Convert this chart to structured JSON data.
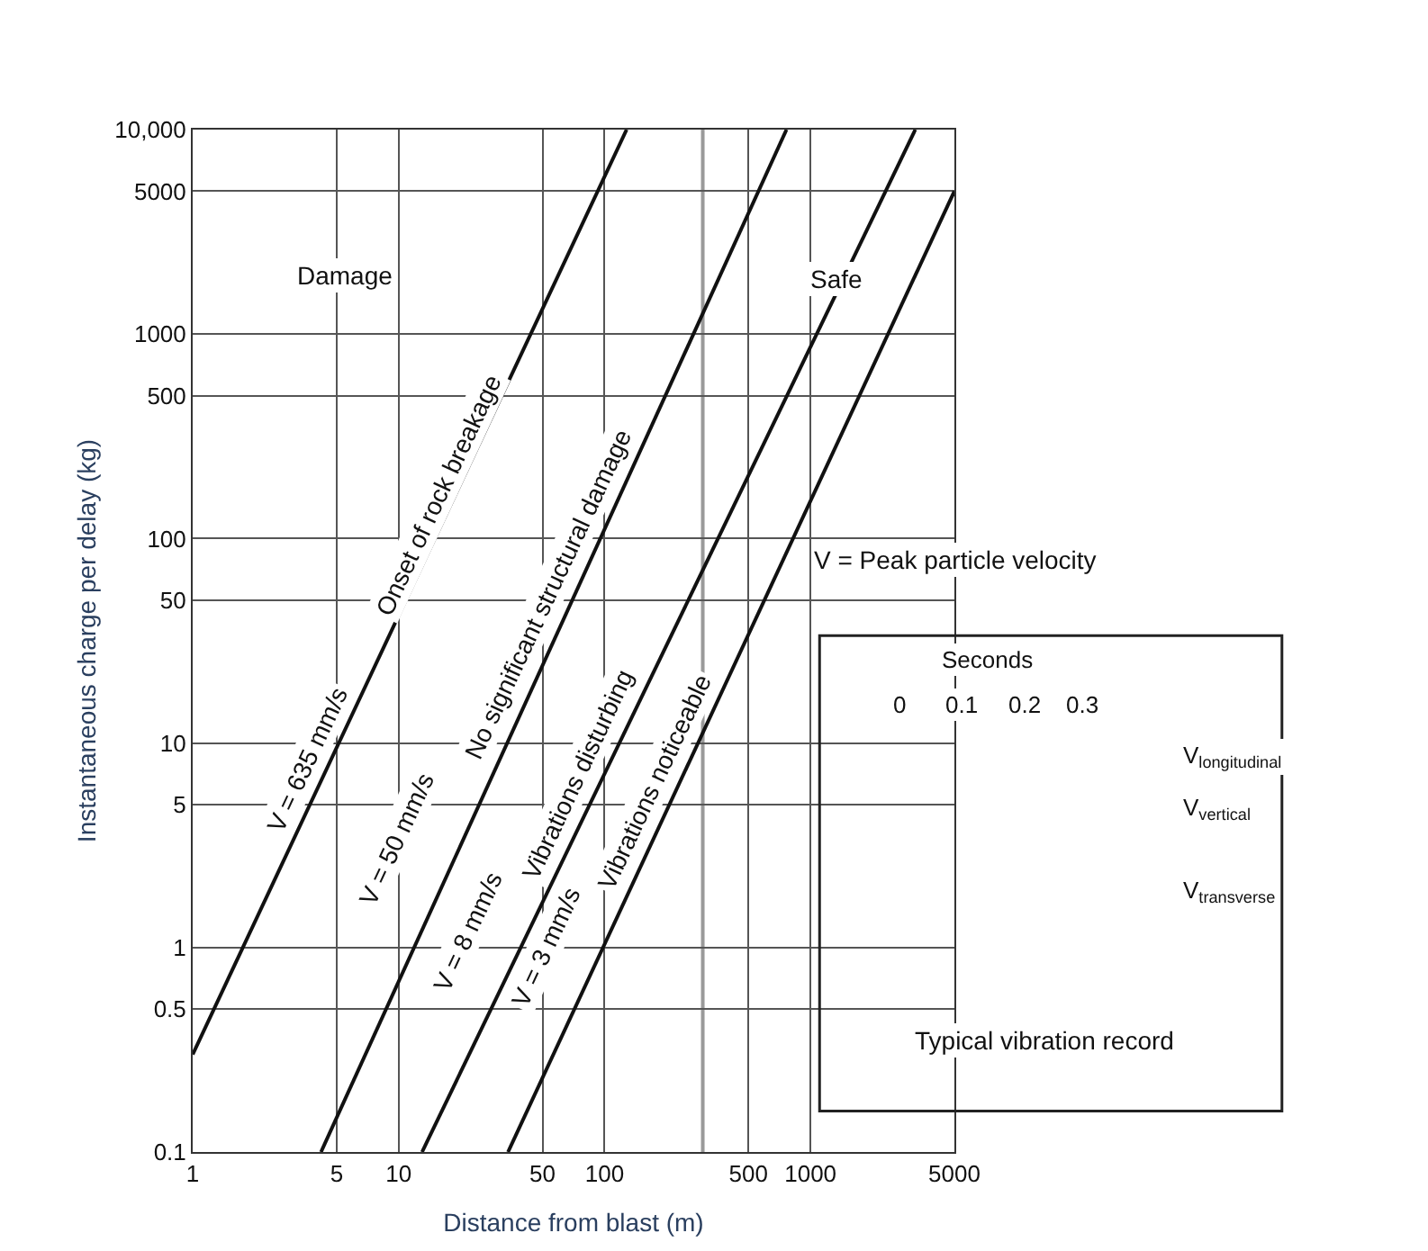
{
  "chart_data": {
    "type": "line",
    "log": "xy",
    "grid": true,
    "marker": "none",
    "line_style": "solid",
    "xlabel": "Distance from blast (m)",
    "ylabel": "Instantaneous charge per delay (kg)",
    "xlim": [
      1,
      5000
    ],
    "xticks": [
      1,
      5,
      10,
      50,
      100,
      500,
      1000,
      5000
    ],
    "ylim": [
      0.1,
      10000
    ],
    "yticks": [
      0.1,
      0.5,
      1,
      5,
      10,
      50,
      100,
      500,
      1000,
      5000,
      {
        "value": 10000,
        "label": "10,000"
      }
    ],
    "series": [
      {
        "color": "#111111",
        "x": [
          1,
          128
        ],
        "values": [
          0.3,
          10000
        ]
      },
      {
        "color": "#111111",
        "x": [
          4.2,
          765
        ],
        "values": [
          0.1,
          10000
        ]
      },
      {
        "color": "#111111",
        "x": [
          13,
          3230
        ],
        "values": [
          0.1,
          10000
        ]
      },
      {
        "color": "#111111",
        "x": [
          34,
          5000
        ],
        "values": [
          0.1,
          5000
        ]
      }
    ],
    "ref_lines": [
      {
        "axis": "x",
        "value": 300,
        "color": "#9a9a9a"
      }
    ],
    "annotations": [
      "V = 635 mm/s",
      "Onset of rock breakage",
      "V = 50 mm/s",
      "No significant structural damage",
      "V = 8 mm/s",
      "Vibrations disturbing",
      "V = 3 mm/s",
      "Vibrations noticeable",
      "Damage",
      "Safe",
      "V = Peak particle velocity",
      "Seconds",
      "0",
      "0.1",
      "0.2",
      "0.3",
      "V$_{longitudinal}$",
      "V$_{vertical}$",
      "V$_{transverse}$",
      "Typical vibration record"
    ]
  }
}
